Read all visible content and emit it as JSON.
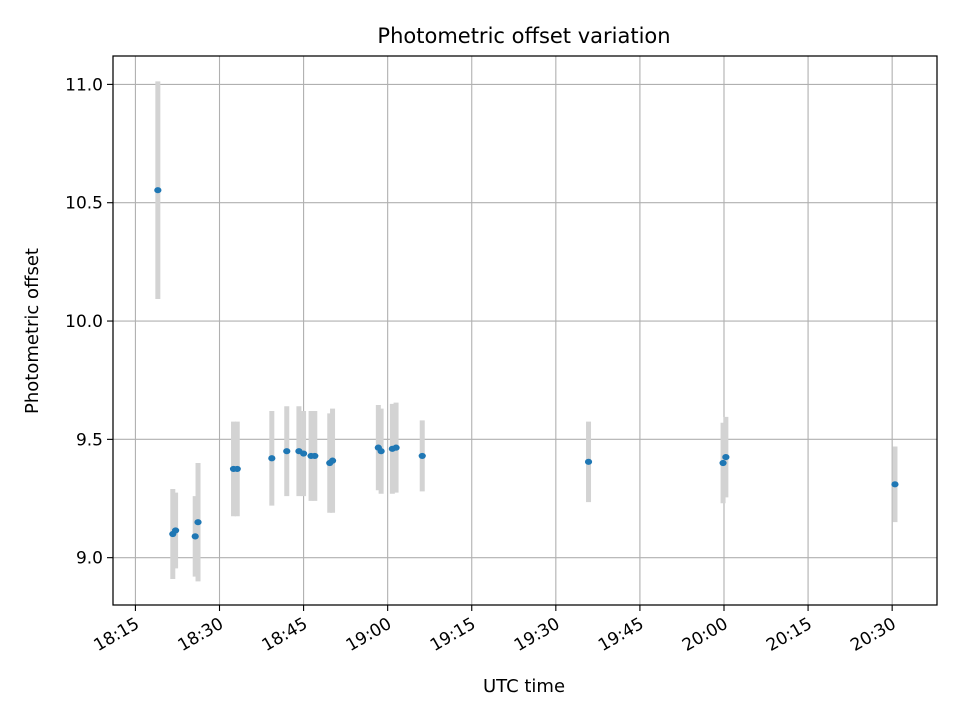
{
  "chart_data": {
    "type": "scatter",
    "title": "Photometric offset variation",
    "xlabel": "UTC time",
    "ylabel": "Photometric offset",
    "x_ticks": [
      "18:15",
      "18:30",
      "18:45",
      "19:00",
      "19:15",
      "19:30",
      "19:45",
      "20:00",
      "20:15",
      "20:30"
    ],
    "y_ticks": [
      "9.0",
      "9.5",
      "10.0",
      "10.5",
      "11.0"
    ],
    "xlim": [
      "18:11",
      "20:38"
    ],
    "ylim": [
      8.8,
      11.12
    ],
    "grid": true,
    "points": [
      {
        "t": "18:19:00",
        "y": 10.553,
        "err": 0.46
      },
      {
        "t": "18:21:40",
        "y": 9.1,
        "err": 0.19
      },
      {
        "t": "18:22:10",
        "y": 9.115,
        "err": 0.16
      },
      {
        "t": "18:25:40",
        "y": 9.09,
        "err": 0.17
      },
      {
        "t": "18:26:10",
        "y": 9.15,
        "err": 0.25
      },
      {
        "t": "18:32:30",
        "y": 9.375,
        "err": 0.2
      },
      {
        "t": "18:33:10",
        "y": 9.375,
        "err": 0.2
      },
      {
        "t": "18:39:20",
        "y": 9.42,
        "err": 0.2
      },
      {
        "t": "18:42:00",
        "y": 9.45,
        "err": 0.19
      },
      {
        "t": "18:44:10",
        "y": 9.45,
        "err": 0.19
      },
      {
        "t": "18:45:00",
        "y": 9.44,
        "err": 0.18
      },
      {
        "t": "18:46:20",
        "y": 9.43,
        "err": 0.19
      },
      {
        "t": "18:47:00",
        "y": 9.43,
        "err": 0.19
      },
      {
        "t": "18:49:40",
        "y": 9.4,
        "err": 0.21
      },
      {
        "t": "18:50:10",
        "y": 9.41,
        "err": 0.22
      },
      {
        "t": "18:58:20",
        "y": 9.465,
        "err": 0.18
      },
      {
        "t": "18:58:50",
        "y": 9.45,
        "err": 0.18
      },
      {
        "t": "19:00:50",
        "y": 9.46,
        "err": 0.19
      },
      {
        "t": "19:01:30",
        "y": 9.465,
        "err": 0.19
      },
      {
        "t": "19:06:10",
        "y": 9.43,
        "err": 0.15
      },
      {
        "t": "19:35:50",
        "y": 9.405,
        "err": 0.17
      },
      {
        "t": "19:59:50",
        "y": 9.4,
        "err": 0.17
      },
      {
        "t": "20:00:20",
        "y": 9.425,
        "err": 0.17
      },
      {
        "t": "20:30:30",
        "y": 9.31,
        "err": 0.16
      }
    ],
    "marker_color": "#1f77b4",
    "errorbar_color": "#d3d3d3"
  }
}
